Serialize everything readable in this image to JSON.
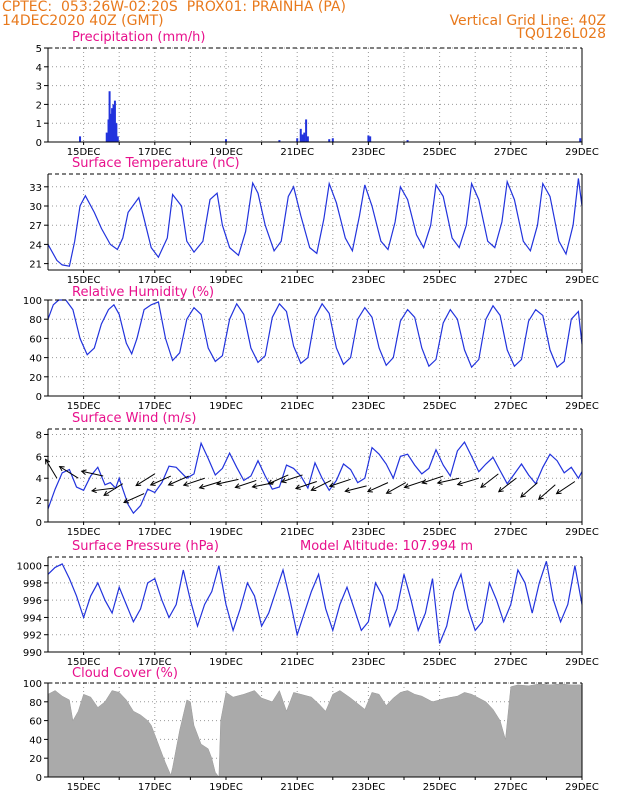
{
  "header": {
    "line1_left": "CPTEC:  053:26W-02:20S  PROX01: PRAINHA (PA)",
    "line2_left": "14DEC2020 40Z (GMT)",
    "line2_right": "Vertical Grid Line: 40Z",
    "line3_right": "TQ0126L028"
  },
  "colors": {
    "header": "#e8791c",
    "title": "#e8108c",
    "line": "#2233dd",
    "cloud": "#aaaaaa",
    "grid": "#999999"
  },
  "x_dates": [
    "15DEC",
    "17DEC",
    "19DEC",
    "21DEC",
    "23DEC",
    "25DEC",
    "27DEC",
    "29DEC"
  ],
  "chart_data": [
    {
      "type": "bar",
      "title": "Precipitation (mm/h)",
      "ylim": [
        0,
        5
      ],
      "yticks": [
        "0",
        "1",
        "2",
        "3",
        "4",
        "5"
      ],
      "x_range_days": [
        14.0,
        29.0
      ],
      "bars": [
        [
          14.9,
          0.3
        ],
        [
          15.65,
          0.5
        ],
        [
          15.7,
          1.2
        ],
        [
          15.73,
          2.7
        ],
        [
          15.77,
          1.5
        ],
        [
          15.8,
          1.8
        ],
        [
          15.84,
          2.0
        ],
        [
          15.88,
          2.2
        ],
        [
          15.92,
          1.0
        ],
        [
          15.96,
          0.3
        ],
        [
          19.0,
          0.15
        ],
        [
          20.5,
          0.1
        ],
        [
          21.0,
          0.2
        ],
        [
          21.1,
          0.7
        ],
        [
          21.15,
          0.4
        ],
        [
          21.2,
          0.5
        ],
        [
          21.25,
          1.2
        ],
        [
          21.3,
          0.3
        ],
        [
          21.9,
          0.15
        ],
        [
          22.0,
          0.2
        ],
        [
          23.0,
          0.35
        ],
        [
          23.05,
          0.3
        ],
        [
          24.1,
          0.1
        ],
        [
          28.95,
          0.2
        ]
      ],
      "grid": true
    },
    {
      "type": "line",
      "title": "Surface Temperature (nC)",
      "ylim": [
        20,
        35
      ],
      "yticks": [
        "21",
        "24",
        "27",
        "30",
        "33"
      ],
      "x_range_days": [
        14.0,
        29.0
      ],
      "days": [
        14.0,
        14.25,
        14.4,
        14.6,
        14.75,
        14.9,
        15.05,
        15.3,
        15.5,
        15.75,
        15.95,
        16.1,
        16.25,
        16.55,
        16.7,
        16.9,
        17.1,
        17.35,
        17.5,
        17.75,
        17.9,
        18.1,
        18.35,
        18.55,
        18.75,
        18.9,
        19.1,
        19.35,
        19.55,
        19.75,
        19.9,
        20.1,
        20.35,
        20.55,
        20.75,
        20.9,
        21.1,
        21.35,
        21.55,
        21.75,
        21.9,
        22.1,
        22.35,
        22.55,
        22.75,
        22.9,
        23.1,
        23.35,
        23.55,
        23.75,
        23.9,
        24.1,
        24.35,
        24.55,
        24.75,
        24.9,
        25.1,
        25.35,
        25.55,
        25.75,
        25.9,
        26.1,
        26.35,
        26.55,
        26.75,
        26.9,
        27.1,
        27.35,
        27.55,
        27.75,
        27.9,
        28.1,
        28.35,
        28.55,
        28.75,
        28.9,
        29.0
      ],
      "values": [
        24.0,
        21.5,
        20.8,
        20.6,
        24.5,
        30.0,
        31.6,
        29.0,
        26.5,
        24.0,
        23.2,
        25.0,
        29.0,
        31.3,
        28.0,
        23.5,
        22.0,
        25.0,
        31.8,
        30.0,
        24.5,
        22.8,
        24.5,
        31.0,
        32.0,
        27.0,
        23.5,
        22.3,
        26.0,
        33.6,
        32.0,
        27.0,
        23.0,
        24.5,
        31.5,
        33.0,
        28.5,
        23.5,
        22.6,
        28.0,
        33.5,
        30.5,
        25.0,
        23.0,
        28.5,
        33.3,
        30.0,
        24.5,
        23.2,
        27.5,
        33.0,
        31.0,
        25.5,
        23.5,
        27.0,
        33.3,
        31.5,
        25.0,
        23.5,
        27.0,
        33.5,
        31.0,
        24.5,
        23.5,
        27.5,
        33.8,
        31.0,
        24.5,
        23.0,
        27.0,
        33.5,
        31.5,
        24.5,
        22.5,
        27.0,
        34.3,
        30.0
      ],
      "grid": true
    },
    {
      "type": "line",
      "title": "Relative Humidity (%)",
      "ylim": [
        0,
        100
      ],
      "yticks": [
        "0",
        "20",
        "40",
        "60",
        "80",
        "100"
      ],
      "x_range_days": [
        14.0,
        29.0
      ],
      "days": [
        14.0,
        14.15,
        14.3,
        14.5,
        14.7,
        14.9,
        15.1,
        15.3,
        15.5,
        15.7,
        15.85,
        16.0,
        16.2,
        16.35,
        16.5,
        16.7,
        16.9,
        17.1,
        17.3,
        17.5,
        17.7,
        17.9,
        18.1,
        18.3,
        18.5,
        18.7,
        18.9,
        19.1,
        19.3,
        19.5,
        19.7,
        19.9,
        20.1,
        20.3,
        20.5,
        20.7,
        20.9,
        21.1,
        21.3,
        21.5,
        21.7,
        21.9,
        22.1,
        22.3,
        22.5,
        22.7,
        22.9,
        23.1,
        23.3,
        23.5,
        23.7,
        23.9,
        24.1,
        24.3,
        24.5,
        24.7,
        24.9,
        25.1,
        25.3,
        25.5,
        25.7,
        25.9,
        26.1,
        26.3,
        26.5,
        26.7,
        26.9,
        27.1,
        27.3,
        27.5,
        27.7,
        27.9,
        28.1,
        28.3,
        28.5,
        28.7,
        28.9,
        29.0
      ],
      "values": [
        80,
        95,
        100,
        100,
        90,
        60,
        43,
        50,
        75,
        90,
        95,
        85,
        55,
        44,
        60,
        90,
        95,
        98,
        60,
        37,
        45,
        80,
        92,
        85,
        50,
        36,
        42,
        80,
        96,
        85,
        50,
        35,
        42,
        82,
        96,
        88,
        52,
        34,
        40,
        82,
        96,
        86,
        50,
        33,
        40,
        80,
        92,
        82,
        50,
        32,
        40,
        78,
        90,
        82,
        50,
        31,
        38,
        76,
        90,
        80,
        48,
        30,
        38,
        80,
        94,
        84,
        48,
        31,
        38,
        78,
        90,
        84,
        48,
        30,
        36,
        80,
        88,
        54
      ],
      "grid": true
    },
    {
      "type": "line",
      "title": "Surface Wind (m/s)",
      "ylim": [
        0,
        8.5
      ],
      "yticks": [
        "0",
        "2",
        "4",
        "6",
        "8"
      ],
      "x_range_days": [
        14.0,
        29.0
      ],
      "days": [
        14.0,
        14.2,
        14.4,
        14.6,
        14.8,
        15.0,
        15.2,
        15.4,
        15.6,
        15.75,
        15.9,
        16.0,
        16.1,
        16.25,
        16.4,
        16.6,
        16.8,
        17.0,
        17.2,
        17.4,
        17.6,
        17.75,
        17.9,
        18.1,
        18.3,
        18.5,
        18.7,
        18.9,
        19.1,
        19.3,
        19.5,
        19.7,
        19.9,
        20.1,
        20.3,
        20.5,
        20.7,
        20.9,
        21.1,
        21.3,
        21.5,
        21.7,
        21.9,
        22.1,
        22.3,
        22.5,
        22.7,
        22.9,
        23.1,
        23.3,
        23.5,
        23.7,
        23.9,
        24.1,
        24.3,
        24.5,
        24.7,
        24.9,
        25.1,
        25.3,
        25.5,
        25.7,
        25.9,
        26.1,
        26.3,
        26.5,
        26.7,
        26.9,
        27.1,
        27.3,
        27.5,
        27.7,
        27.9,
        28.1,
        28.3,
        28.5,
        28.7,
        28.9,
        29.0
      ],
      "values": [
        1.2,
        3.0,
        4.5,
        4.8,
        3.2,
        2.9,
        4.2,
        5.0,
        3.4,
        3.6,
        3.1,
        4.0,
        3.0,
        1.6,
        0.8,
        1.5,
        3.0,
        2.7,
        3.6,
        5.1,
        5.0,
        4.5,
        4.0,
        4.4,
        7.2,
        5.8,
        4.3,
        4.9,
        6.3,
        5.0,
        3.8,
        4.2,
        5.6,
        4.2,
        3.0,
        3.2,
        5.2,
        4.9,
        4.2,
        3.1,
        5.4,
        4.0,
        2.9,
        3.8,
        5.3,
        4.8,
        3.6,
        4.0,
        6.8,
        6.2,
        5.3,
        4.0,
        6.0,
        6.2,
        5.2,
        4.4,
        4.9,
        6.6,
        5.2,
        4.2,
        6.5,
        7.3,
        6.0,
        4.6,
        5.3,
        5.9,
        4.7,
        3.5,
        4.4,
        5.3,
        4.3,
        3.5,
        5.0,
        6.2,
        5.6,
        4.5,
        5.0,
        4.0,
        4.6
      ],
      "arrows": [
        [
          14.25,
          4.0,
          -0.6,
          1
        ],
        [
          14.85,
          4.0,
          -0.8,
          0.5
        ],
        [
          15.55,
          4.2,
          -0.9,
          0.2
        ],
        [
          15.85,
          3.1,
          -0.8,
          -0.1
        ],
        [
          16.1,
          3.5,
          -0.8,
          -0.5
        ],
        [
          16.7,
          2.6,
          -0.9,
          -0.4
        ],
        [
          17.0,
          4.4,
          -0.8,
          -0.5
        ],
        [
          17.45,
          4.2,
          -0.9,
          -0.4
        ],
        [
          17.95,
          4.2,
          -0.9,
          -0.4
        ],
        [
          18.4,
          4.0,
          -0.9,
          -0.3
        ],
        [
          18.85,
          3.7,
          -1.0,
          -0.3
        ],
        [
          19.35,
          3.9,
          -0.9,
          -0.2
        ],
        [
          19.85,
          3.8,
          -0.9,
          -0.3
        ],
        [
          20.35,
          3.6,
          -1.0,
          -0.2
        ],
        [
          20.75,
          4.3,
          -0.9,
          -0.4
        ],
        [
          21.15,
          4.3,
          -0.9,
          -0.3
        ],
        [
          21.55,
          3.7,
          -0.9,
          -0.3
        ],
        [
          21.95,
          3.8,
          -0.8,
          -0.4
        ],
        [
          22.5,
          3.9,
          -0.9,
          -0.3
        ],
        [
          22.95,
          3.3,
          -0.8,
          -0.2
        ],
        [
          23.55,
          3.6,
          -0.9,
          -0.4
        ],
        [
          24.05,
          3.6,
          -0.9,
          -0.5
        ],
        [
          24.6,
          3.8,
          -0.9,
          -0.3
        ],
        [
          25.1,
          4.2,
          -0.9,
          -0.3
        ],
        [
          25.55,
          4.0,
          -0.9,
          -0.2
        ],
        [
          26.1,
          4.0,
          -1.0,
          -0.3
        ],
        [
          26.65,
          4.4,
          -0.9,
          -0.7
        ],
        [
          27.15,
          4.0,
          -0.9,
          -0.7
        ],
        [
          27.75,
          3.6,
          -0.8,
          -0.7
        ],
        [
          28.25,
          3.4,
          -0.8,
          -0.7
        ],
        [
          28.8,
          3.7,
          -0.9,
          -0.6
        ]
      ],
      "grid": true
    },
    {
      "type": "line",
      "title": "Surface Pressure (hPa)",
      "annotation": "Model Altitude: 107.994 m",
      "ylim": [
        990,
        1001
      ],
      "yticks": [
        "990",
        "992",
        "994",
        "996",
        "998",
        "1000"
      ],
      "x_range_days": [
        14.0,
        29.0
      ],
      "days": [
        14.0,
        14.2,
        14.4,
        14.6,
        14.8,
        15.0,
        15.2,
        15.4,
        15.6,
        15.8,
        16.0,
        16.2,
        16.4,
        16.6,
        16.8,
        17.0,
        17.2,
        17.4,
        17.6,
        17.8,
        18.0,
        18.2,
        18.4,
        18.6,
        18.8,
        19.0,
        19.2,
        19.4,
        19.6,
        19.8,
        20.0,
        20.2,
        20.4,
        20.6,
        20.8,
        21.0,
        21.2,
        21.4,
        21.6,
        21.8,
        22.0,
        22.2,
        22.4,
        22.6,
        22.8,
        23.0,
        23.2,
        23.4,
        23.6,
        23.8,
        24.0,
        24.2,
        24.4,
        24.6,
        24.8,
        25.0,
        25.2,
        25.4,
        25.6,
        25.8,
        26.0,
        26.2,
        26.4,
        26.6,
        26.8,
        27.0,
        27.2,
        27.4,
        27.6,
        27.8,
        28.0,
        28.2,
        28.4,
        28.6,
        28.8,
        29.0
      ],
      "values": [
        999.0,
        999.8,
        1000.2,
        998.5,
        996.5,
        994.0,
        996.5,
        998.0,
        996.0,
        994.5,
        997.5,
        995.5,
        993.5,
        995.0,
        998.0,
        998.5,
        996.0,
        994.0,
        995.5,
        999.5,
        996.0,
        993.0,
        995.5,
        997.0,
        1000.0,
        995.5,
        992.5,
        995.0,
        998.0,
        996.5,
        993.0,
        994.5,
        997.0,
        999.5,
        996.0,
        992.0,
        994.5,
        997.0,
        999.0,
        995.0,
        992.5,
        995.5,
        997.5,
        995.0,
        992.5,
        993.5,
        998.0,
        996.5,
        993.0,
        995.0,
        999.0,
        996.0,
        992.5,
        994.5,
        998.5,
        991.0,
        993.0,
        997.0,
        999.0,
        995.0,
        992.5,
        993.5,
        998.0,
        996.0,
        993.5,
        995.5,
        999.5,
        998.0,
        994.5,
        998.0,
        1000.5,
        996.0,
        993.5,
        995.5,
        1000.0,
        995.5
      ],
      "grid": true
    },
    {
      "type": "area",
      "title": "Cloud Cover (%)",
      "ylim": [
        0,
        100
      ],
      "yticks": [
        "0",
        "20",
        "40",
        "60",
        "80",
        "100"
      ],
      "x_range_days": [
        14.0,
        29.0
      ],
      "days": [
        14.0,
        14.2,
        14.4,
        14.6,
        14.7,
        14.85,
        15.0,
        15.2,
        15.4,
        15.6,
        15.8,
        16.0,
        16.2,
        16.4,
        16.6,
        16.8,
        16.9,
        17.0,
        17.15,
        17.3,
        17.45,
        17.5,
        17.7,
        17.9,
        18.0,
        18.1,
        18.3,
        18.5,
        18.6,
        18.7,
        18.8,
        18.85,
        19.0,
        19.2,
        19.5,
        19.8,
        20.0,
        20.3,
        20.5,
        20.7,
        20.9,
        21.1,
        21.4,
        21.6,
        21.8,
        22.0,
        22.2,
        22.5,
        22.7,
        22.9,
        23.1,
        23.3,
        23.5,
        23.7,
        23.9,
        24.1,
        24.3,
        24.5,
        24.8,
        25.0,
        25.2,
        25.5,
        25.7,
        25.9,
        26.1,
        26.3,
        26.5,
        26.7,
        26.85,
        27.0,
        27.2,
        27.5,
        27.8,
        28.1,
        28.4,
        28.7,
        29.0
      ],
      "values": [
        88,
        92,
        86,
        82,
        60,
        70,
        88,
        85,
        74,
        80,
        92,
        90,
        82,
        70,
        66,
        60,
        55,
        45,
        30,
        15,
        2,
        10,
        50,
        82,
        80,
        55,
        35,
        30,
        20,
        5,
        0,
        60,
        90,
        85,
        88,
        92,
        84,
        80,
        92,
        70,
        90,
        88,
        85,
        78,
        70,
        88,
        92,
        84,
        78,
        72,
        90,
        88,
        76,
        84,
        90,
        92,
        88,
        86,
        80,
        82,
        84,
        86,
        90,
        88,
        84,
        80,
        72,
        60,
        40,
        96,
        98,
        97,
        99,
        98,
        99,
        98,
        98
      ],
      "grid": true
    }
  ]
}
